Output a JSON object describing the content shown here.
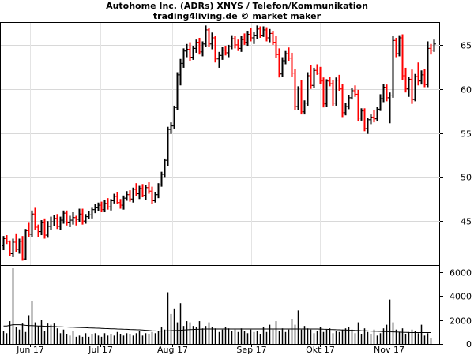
{
  "chart_data": [
    {
      "type": "ohlc",
      "title": "Autohome Inc. (ADRs) XNYS / Telefon/Kommunikation",
      "subtitle": "trading4living.de © market maker",
      "ylim": [
        40,
        67.5
      ],
      "yticks": [
        45,
        50,
        55,
        60,
        65
      ],
      "ytick_labels": [
        "45",
        "50",
        "55",
        "60",
        "65"
      ],
      "x_labels": [
        "Jun 17",
        "Jul 17",
        "Aug 17",
        "Sep 17",
        "Okt 17",
        "Nov 17"
      ],
      "colors": {
        "up": "#000000",
        "down": "#ff0000"
      },
      "bars": [
        [
          42.2,
          43.3,
          41.7,
          43.0
        ],
        [
          43.0,
          43.4,
          42.4,
          42.7
        ],
        [
          42.7,
          42.8,
          41.0,
          41.3
        ],
        [
          41.3,
          43.0,
          40.9,
          42.6
        ],
        [
          42.6,
          43.6,
          41.5,
          41.8
        ],
        [
          41.8,
          43.0,
          41.3,
          42.7
        ],
        [
          42.7,
          43.3,
          40.5,
          40.7
        ],
        [
          40.7,
          44.1,
          40.6,
          43.9
        ],
        [
          43.9,
          44.8,
          43.2,
          43.5
        ],
        [
          43.5,
          46.2,
          43.2,
          45.8
        ],
        [
          45.8,
          46.5,
          44.0,
          44.3
        ],
        [
          44.3,
          44.6,
          43.2,
          43.8
        ],
        [
          43.8,
          45.1,
          43.4,
          44.8
        ],
        [
          44.8,
          45.3,
          43.0,
          43.4
        ],
        [
          43.4,
          45.0,
          43.1,
          44.4
        ],
        [
          44.4,
          45.5,
          44.0,
          44.9
        ],
        [
          44.9,
          45.7,
          44.4,
          45.3
        ],
        [
          45.3,
          45.8,
          44.1,
          44.4
        ],
        [
          44.4,
          45.5,
          44.0,
          45.1
        ],
        [
          45.1,
          46.2,
          44.7,
          45.9
        ],
        [
          45.9,
          46.2,
          44.5,
          44.8
        ],
        [
          44.8,
          45.6,
          44.3,
          45.1
        ],
        [
          45.1,
          46.0,
          44.6,
          45.4
        ],
        [
          45.4,
          45.6,
          44.5,
          45.2
        ],
        [
          45.2,
          46.4,
          44.9,
          45.8
        ],
        [
          45.8,
          46.4,
          44.6,
          45.0
        ],
        [
          45.0,
          45.8,
          44.7,
          45.5
        ],
        [
          45.5,
          46.1,
          45.2,
          45.7
        ],
        [
          45.7,
          46.5,
          45.3,
          46.3
        ],
        [
          46.3,
          46.9,
          45.9,
          46.5
        ],
        [
          46.5,
          47.1,
          46.1,
          46.8
        ],
        [
          46.8,
          47.2,
          46.0,
          46.3
        ],
        [
          46.3,
          47.4,
          46.0,
          47.0
        ],
        [
          47.0,
          47.6,
          46.3,
          46.6
        ],
        [
          46.6,
          47.5,
          46.2,
          47.3
        ],
        [
          47.3,
          48.1,
          47.0,
          47.8
        ],
        [
          47.8,
          48.3,
          46.9,
          47.1
        ],
        [
          47.1,
          47.5,
          46.4,
          46.8
        ],
        [
          46.8,
          47.9,
          46.3,
          47.6
        ],
        [
          47.6,
          48.4,
          47.3,
          48.0
        ],
        [
          48.0,
          48.5,
          47.2,
          47.5
        ],
        [
          47.5,
          48.8,
          47.1,
          48.6
        ],
        [
          48.6,
          49.3,
          47.8,
          48.1
        ],
        [
          48.1,
          49.0,
          47.5,
          48.7
        ],
        [
          48.7,
          49.2,
          47.7,
          47.9
        ],
        [
          47.9,
          49.1,
          47.4,
          48.8
        ],
        [
          48.8,
          49.4,
          48.1,
          48.4
        ],
        [
          48.4,
          48.9,
          46.9,
          47.3
        ],
        [
          47.3,
          48.3,
          47.1,
          48.0
        ],
        [
          48.0,
          49.3,
          47.6,
          49.1
        ],
        [
          49.1,
          50.6,
          48.9,
          50.3
        ],
        [
          50.3,
          52.1,
          50.0,
          51.9
        ],
        [
          51.9,
          55.7,
          51.2,
          55.4
        ],
        [
          55.4,
          56.2,
          54.9,
          55.8
        ],
        [
          55.8,
          58.1,
          55.5,
          57.9
        ],
        [
          57.9,
          61.9,
          57.6,
          61.6
        ],
        [
          61.6,
          63.4,
          60.4,
          62.9
        ],
        [
          62.9,
          64.6,
          62.4,
          64.3
        ],
        [
          64.3,
          65.1,
          63.6,
          64.5
        ],
        [
          64.5,
          65.3,
          63.2,
          63.6
        ],
        [
          63.6,
          64.9,
          63.3,
          64.6
        ],
        [
          64.6,
          65.6,
          64.1,
          65.3
        ],
        [
          65.3,
          65.8,
          63.9,
          64.2
        ],
        [
          64.2,
          65.4,
          63.7,
          65.1
        ],
        [
          65.1,
          67.2,
          64.8,
          66.7
        ],
        [
          66.7,
          66.9,
          64.8,
          65.1
        ],
        [
          65.1,
          66.4,
          64.5,
          65.8
        ],
        [
          65.8,
          66.0,
          63.0,
          63.4
        ],
        [
          63.4,
          64.2,
          62.4,
          63.8
        ],
        [
          63.8,
          64.8,
          63.3,
          64.4
        ],
        [
          64.4,
          64.9,
          63.8,
          64.1
        ],
        [
          64.1,
          65.0,
          63.6,
          64.8
        ],
        [
          64.8,
          66.1,
          64.5,
          65.7
        ],
        [
          65.7,
          66.0,
          64.6,
          65.0
        ],
        [
          65.0,
          65.6,
          64.3,
          64.6
        ],
        [
          64.6,
          66.0,
          64.2,
          65.6
        ],
        [
          65.6,
          66.3,
          65.0,
          65.3
        ],
        [
          65.3,
          66.6,
          64.9,
          66.2
        ],
        [
          66.2,
          66.9,
          65.4,
          65.8
        ],
        [
          65.8,
          66.5,
          65.1,
          66.1
        ],
        [
          66.1,
          67.2,
          65.7,
          66.8
        ],
        [
          66.8,
          67.1,
          65.8,
          66.1
        ],
        [
          66.1,
          67.1,
          65.9,
          66.7
        ],
        [
          66.7,
          67.0,
          65.4,
          65.8
        ],
        [
          65.8,
          66.8,
          65.3,
          66.3
        ],
        [
          66.3,
          66.6,
          65.0,
          65.3
        ],
        [
          65.3,
          66.0,
          63.5,
          63.9
        ],
        [
          63.9,
          64.6,
          61.3,
          61.7
        ],
        [
          61.7,
          63.6,
          61.4,
          63.2
        ],
        [
          63.2,
          64.3,
          62.8,
          64.0
        ],
        [
          64.0,
          64.7,
          63.2,
          63.5
        ],
        [
          63.5,
          64.1,
          61.4,
          61.8
        ],
        [
          61.8,
          62.3,
          57.6,
          58.0
        ],
        [
          58.0,
          60.3,
          57.6,
          60.1
        ],
        [
          60.1,
          61.0,
          57.1,
          57.4
        ],
        [
          57.4,
          58.7,
          57.1,
          58.4
        ],
        [
          58.4,
          61.9,
          58.1,
          61.5
        ],
        [
          61.5,
          62.7,
          60.0,
          60.4
        ],
        [
          60.4,
          62.4,
          60.1,
          62.1
        ],
        [
          62.1,
          62.8,
          61.6,
          61.8
        ],
        [
          61.8,
          62.5,
          60.6,
          60.9
        ],
        [
          60.9,
          61.3,
          57.9,
          58.3
        ],
        [
          58.3,
          61.1,
          58.0,
          60.9
        ],
        [
          60.9,
          61.4,
          60.3,
          60.6
        ],
        [
          60.6,
          61.0,
          58.1,
          58.4
        ],
        [
          58.4,
          61.3,
          58.1,
          61.0
        ],
        [
          61.0,
          61.6,
          59.8,
          60.0
        ],
        [
          60.0,
          60.6,
          56.8,
          57.3
        ],
        [
          57.3,
          58.4,
          57.0,
          58.0
        ],
        [
          58.0,
          59.3,
          57.7,
          59.0
        ],
        [
          59.0,
          60.1,
          58.8,
          59.8
        ],
        [
          59.8,
          60.4,
          59.1,
          59.4
        ],
        [
          59.4,
          59.9,
          56.3,
          56.7
        ],
        [
          56.7,
          57.8,
          56.4,
          57.5
        ],
        [
          57.5,
          57.8,
          55.2,
          55.5
        ],
        [
          55.5,
          56.7,
          54.9,
          56.5
        ],
        [
          56.5,
          57.1,
          56.0,
          56.8
        ],
        [
          56.8,
          57.6,
          56.2,
          56.6
        ],
        [
          56.6,
          58.0,
          56.3,
          57.7
        ],
        [
          57.7,
          59.4,
          57.5,
          58.9
        ],
        [
          58.9,
          60.6,
          58.5,
          60.2
        ],
        [
          60.2,
          60.5,
          58.6,
          59.0
        ],
        [
          59.0,
          59.6,
          56.1,
          59.3
        ],
        [
          59.3,
          66.0,
          59.0,
          65.5
        ],
        [
          65.5,
          65.8,
          63.6,
          64.0
        ],
        [
          64.0,
          66.1,
          63.7,
          65.8
        ],
        [
          65.8,
          66.2,
          61.0,
          61.5
        ],
        [
          61.5,
          62.4,
          59.6,
          60.0
        ],
        [
          60.0,
          61.4,
          59.1,
          61.1
        ],
        [
          61.1,
          62.2,
          58.3,
          58.8
        ],
        [
          58.8,
          61.7,
          58.6,
          61.4
        ],
        [
          61.4,
          63.0,
          60.4,
          60.9
        ],
        [
          60.9,
          62.1,
          60.5,
          61.6
        ],
        [
          61.6,
          62.3,
          60.2,
          60.5
        ],
        [
          60.5,
          65.4,
          60.2,
          64.6
        ],
        [
          64.6,
          65.1,
          63.9,
          64.4
        ],
        [
          64.4,
          65.6,
          64.2,
          65.1
        ]
      ]
    },
    {
      "type": "bar",
      "ylim": [
        0,
        6500
      ],
      "yticks": [
        0,
        2000,
        4000,
        6000
      ],
      "ytick_labels": [
        "0",
        "2000",
        "4000",
        "6000"
      ],
      "values": [
        1100,
        900,
        1900,
        6300,
        1400,
        1200,
        1700,
        1000,
        2400,
        3600,
        1800,
        1500,
        2000,
        1100,
        1700,
        1600,
        1700,
        1300,
        900,
        1200,
        800,
        700,
        1100,
        600,
        700,
        600,
        900,
        600,
        800,
        900,
        700,
        600,
        900,
        700,
        800,
        700,
        1000,
        800,
        700,
        900,
        800,
        700,
        900,
        1100,
        700,
        900,
        800,
        1000,
        900,
        1100,
        1400,
        1200,
        4300,
        2500,
        2900,
        1800,
        3400,
        1500,
        1900,
        1800,
        1500,
        1400,
        1900,
        1300,
        1500,
        1800,
        1400,
        1300,
        1000,
        1200,
        1400,
        1300,
        1100,
        1200,
        1000,
        1300,
        1100,
        900,
        1200,
        1000,
        1100,
        800,
        1400,
        1000,
        1600,
        1200,
        1900,
        1100,
        1300,
        1000,
        1200,
        2100,
        1600,
        2800,
        1200,
        1500,
        1300,
        1200,
        900,
        1100,
        1400,
        1000,
        1200,
        1300,
        900,
        1100,
        1000,
        1200,
        1300,
        1400,
        1200,
        900,
        1800,
        800,
        1300,
        1000,
        800,
        1200,
        700,
        900,
        1300,
        1600,
        3700,
        1800,
        1200,
        1000,
        1300,
        800,
        1000,
        1200,
        1100,
        900,
        1600,
        700,
        900,
        500
      ],
      "average": [
        1500,
        1500,
        1550,
        1600,
        1600,
        1600,
        1580,
        1550,
        1530,
        1520,
        1510,
        1500,
        1490,
        1480,
        1470,
        1460,
        1450,
        1440,
        1430,
        1420,
        1410,
        1400,
        1390,
        1380,
        1370,
        1360,
        1350,
        1340,
        1330,
        1320,
        1310,
        1300,
        1290,
        1280,
        1270,
        1260,
        1250,
        1240,
        1230,
        1220,
        1210,
        1200,
        1190,
        1180,
        1160,
        1140,
        1120,
        1100,
        1090,
        1080,
        1080,
        1090,
        1100,
        1110,
        1120,
        1130,
        1140,
        1160,
        1180,
        1200,
        1210,
        1220,
        1230,
        1240,
        1250,
        1250,
        1250,
        1250,
        1250,
        1250,
        1250,
        1250,
        1250,
        1250,
        1250,
        1250,
        1250,
        1250,
        1250,
        1250,
        1250,
        1250,
        1250,
        1250,
        1250,
        1250,
        1250,
        1250,
        1250,
        1250,
        1250,
        1250,
        1250,
        1250,
        1250,
        1250,
        1250,
        1250,
        1250,
        1250,
        1240,
        1230,
        1220,
        1210,
        1200,
        1190,
        1180,
        1170,
        1160,
        1150,
        1140,
        1130,
        1120,
        1110,
        1100,
        1090,
        1080,
        1070,
        1060,
        1050,
        1040,
        1030,
        1020,
        1010,
        1000,
        990,
        980,
        970,
        960,
        950,
        950,
        950,
        950,
        950,
        950,
        950
      ]
    }
  ]
}
